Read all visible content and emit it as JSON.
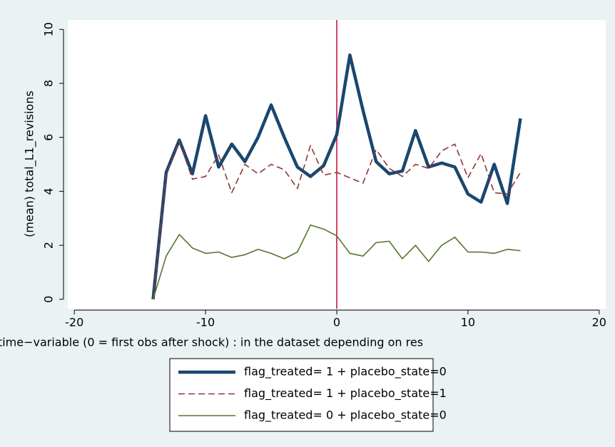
{
  "chart_data": {
    "type": "line",
    "x_label": "time−variable (0 = first obs after shock)        : in the dataset depending on res",
    "y_label": "(mean) total_L1_revisions",
    "x": [
      -14,
      -13,
      -12,
      -11,
      -10,
      -9,
      -8,
      -7,
      -6,
      -5,
      -4,
      -3,
      -2,
      -1,
      0,
      1,
      2,
      3,
      4,
      5,
      6,
      7,
      8,
      9,
      10,
      11,
      12,
      13,
      14
    ],
    "series": [
      {
        "name": "flag_treated= 1 + placebo_state=0",
        "color": "#1a476f",
        "line_style": "solid",
        "line_width": "thick",
        "values": [
          0,
          4.7,
          5.9,
          4.65,
          6.8,
          4.9,
          5.75,
          5.1,
          6.0,
          7.2,
          6.0,
          4.9,
          4.55,
          4.95,
          6.1,
          9.05,
          7.0,
          5.1,
          4.65,
          4.75,
          6.25,
          4.9,
          5.05,
          4.9,
          3.9,
          3.6,
          5.0,
          3.55,
          6.7
        ]
      },
      {
        "name": "flag_treated= 1 + placebo_state=1",
        "color": "#90353b",
        "line_style": "dashed",
        "line_width": "thin",
        "values": [
          0,
          4.6,
          5.85,
          4.45,
          4.55,
          5.35,
          3.95,
          5.0,
          4.65,
          5.0,
          4.8,
          4.1,
          5.7,
          4.6,
          4.7,
          4.5,
          4.3,
          5.55,
          4.85,
          4.55,
          5.0,
          4.85,
          5.5,
          5.75,
          4.5,
          5.4,
          3.95,
          3.9,
          4.7
        ]
      },
      {
        "name": "flag_treated= 0  + placebo_state=0",
        "color": "#55752f",
        "line_style": "solid",
        "line_width": "thin",
        "values": [
          0,
          1.6,
          2.4,
          1.9,
          1.7,
          1.75,
          1.55,
          1.65,
          1.85,
          1.7,
          1.5,
          1.75,
          2.75,
          2.6,
          2.35,
          1.7,
          1.6,
          2.1,
          2.15,
          1.5,
          2.0,
          1.4,
          2.0,
          2.3,
          1.75,
          1.75,
          1.7,
          1.85,
          1.8
        ]
      }
    ],
    "xlim": [
      -20.5,
      20.5
    ],
    "xticks": [
      -20,
      -10,
      0,
      10,
      20
    ],
    "ylim": [
      -0.35,
      10.35
    ],
    "yticks": [
      0,
      2,
      4,
      6,
      8,
      10
    ],
    "xline": {
      "value": 0,
      "color": "#c10534"
    },
    "legend": "bottom"
  }
}
